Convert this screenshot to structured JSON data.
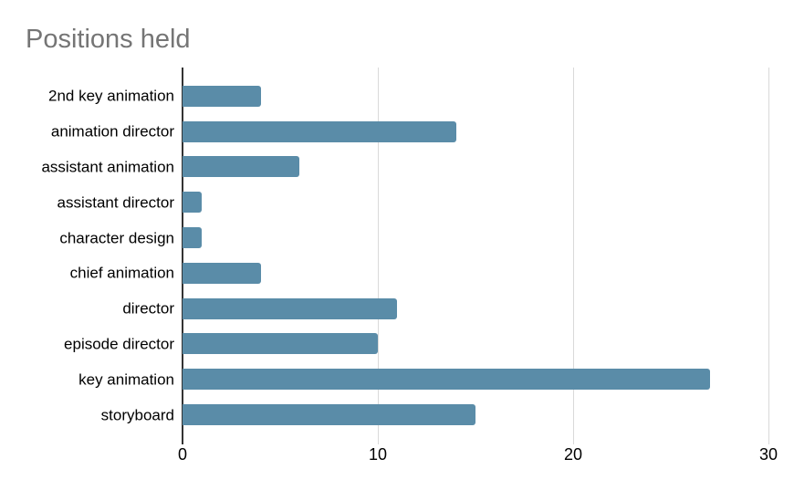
{
  "chart": {
    "title": "Positions held"
  },
  "chart_data": {
    "type": "bar",
    "orientation": "horizontal",
    "title": "Positions held",
    "xlabel": "",
    "ylabel": "",
    "categories": [
      "2nd key animation",
      "animation director",
      "assistant animation",
      "assistant director",
      "character design",
      "chief animation",
      "director",
      "episode director",
      "key animation",
      "storyboard"
    ],
    "values": [
      4,
      14,
      6,
      1,
      1,
      4,
      11,
      10,
      27,
      15
    ],
    "xlim": [
      0,
      30
    ],
    "x_ticks": [
      0,
      10,
      20,
      30
    ],
    "grid": "vertical-gridlines-at-x-ticks",
    "legend": "none",
    "colors": {
      "bar": "#5a8ca8",
      "title_text": "#757575",
      "label_text": "#000000",
      "gridline": "#d9d9d9",
      "axis_line": "#333333",
      "background": "#ffffff"
    }
  }
}
